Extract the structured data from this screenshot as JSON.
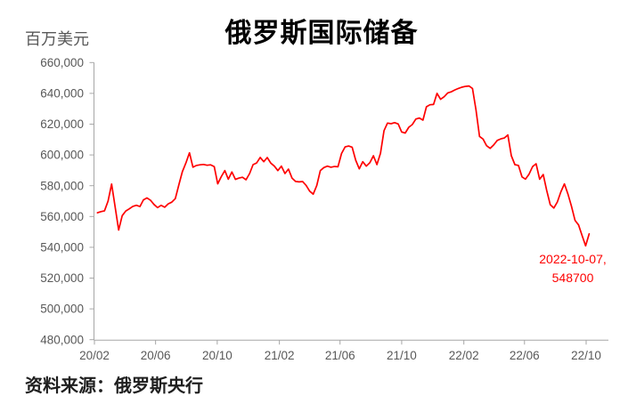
{
  "chart": {
    "title": "俄罗斯国际储备",
    "unit_label": "百万美元",
    "source": "资料来源：俄罗斯央行",
    "annotation": {
      "line1": "2022-10-07,",
      "line2": "548700"
    },
    "colors": {
      "line": "#fe0000",
      "annotation": "#fe0000",
      "axis": "#a6a6a6",
      "tick_label": "#595959",
      "title": "#000000",
      "source": "#1f1f1f"
    }
  },
  "chart_data": {
    "type": "line",
    "title": "俄罗斯国际储备",
    "ylabel": "百万美元",
    "xlabel": "",
    "grid": false,
    "legend": "none",
    "ylim": [
      480000,
      660000
    ],
    "ytick_step": 20000,
    "ytick_labels": [
      "660,000",
      "640,000",
      "620,000",
      "600,000",
      "580,000",
      "560,000",
      "540,000",
      "520,000",
      "500,000",
      "480,000"
    ],
    "xticks": [
      {
        "date": "2020-02-01",
        "label": "20/02"
      },
      {
        "date": "2020-06-01",
        "label": "20/06"
      },
      {
        "date": "2020-10-01",
        "label": "20/10"
      },
      {
        "date": "2021-02-01",
        "label": "21/02"
      },
      {
        "date": "2021-06-01",
        "label": "21/06"
      },
      {
        "date": "2021-10-01",
        "label": "21/10"
      },
      {
        "date": "2022-02-01",
        "label": "22/02"
      },
      {
        "date": "2022-06-01",
        "label": "22/06"
      },
      {
        "date": "2022-10-01",
        "label": "22/10"
      }
    ],
    "annotation": {
      "date": "2022-10-07",
      "value": 548700,
      "text_line1": "2022-10-07,",
      "text_line2": "548700"
    },
    "series": [
      {
        "name": "俄罗斯国际储备",
        "color": "#fe0000",
        "points": [
          [
            "2020-02-07",
            562400
          ],
          [
            "2020-02-14",
            563200
          ],
          [
            "2020-02-21",
            563700
          ],
          [
            "2020-02-28",
            570000
          ],
          [
            "2020-03-06",
            581100
          ],
          [
            "2020-03-13",
            566000
          ],
          [
            "2020-03-20",
            551200
          ],
          [
            "2020-03-27",
            560600
          ],
          [
            "2020-04-03",
            563600
          ],
          [
            "2020-04-10",
            565000
          ],
          [
            "2020-04-17",
            566600
          ],
          [
            "2020-04-24",
            567300
          ],
          [
            "2020-05-01",
            566500
          ],
          [
            "2020-05-08",
            570800
          ],
          [
            "2020-05-15",
            572100
          ],
          [
            "2020-05-22",
            570500
          ],
          [
            "2020-05-29",
            567800
          ],
          [
            "2020-06-05",
            565800
          ],
          [
            "2020-06-12",
            567300
          ],
          [
            "2020-06-19",
            566000
          ],
          [
            "2020-06-26",
            568200
          ],
          [
            "2020-07-03",
            569300
          ],
          [
            "2020-07-10",
            571600
          ],
          [
            "2020-07-17",
            580400
          ],
          [
            "2020-07-24",
            589100
          ],
          [
            "2020-07-31",
            594800
          ],
          [
            "2020-08-07",
            601400
          ],
          [
            "2020-08-14",
            592000
          ],
          [
            "2020-08-21",
            593200
          ],
          [
            "2020-08-28",
            593600
          ],
          [
            "2020-09-04",
            593800
          ],
          [
            "2020-09-11",
            593300
          ],
          [
            "2020-09-18",
            593600
          ],
          [
            "2020-09-25",
            592400
          ],
          [
            "2020-10-02",
            581200
          ],
          [
            "2020-10-09",
            585900
          ],
          [
            "2020-10-16",
            589800
          ],
          [
            "2020-10-23",
            584200
          ],
          [
            "2020-10-30",
            588900
          ],
          [
            "2020-11-06",
            584100
          ],
          [
            "2020-11-13",
            585000
          ],
          [
            "2020-11-20",
            585500
          ],
          [
            "2020-11-27",
            583900
          ],
          [
            "2020-12-04",
            587900
          ],
          [
            "2020-12-11",
            593700
          ],
          [
            "2020-12-18",
            594800
          ],
          [
            "2020-12-25",
            598400
          ],
          [
            "2021-01-01",
            595600
          ],
          [
            "2021-01-08",
            598300
          ],
          [
            "2021-01-15",
            594700
          ],
          [
            "2021-01-22",
            592700
          ],
          [
            "2021-01-29",
            589800
          ],
          [
            "2021-02-05",
            592700
          ],
          [
            "2021-02-12",
            587900
          ],
          [
            "2021-02-19",
            590800
          ],
          [
            "2021-02-26",
            585000
          ],
          [
            "2021-03-05",
            582800
          ],
          [
            "2021-03-12",
            582500
          ],
          [
            "2021-03-19",
            582700
          ],
          [
            "2021-03-26",
            580200
          ],
          [
            "2021-04-02",
            576400
          ],
          [
            "2021-04-09",
            574500
          ],
          [
            "2021-04-16",
            580200
          ],
          [
            "2021-04-23",
            589800
          ],
          [
            "2021-04-30",
            591800
          ],
          [
            "2021-05-07",
            592700
          ],
          [
            "2021-05-14",
            592000
          ],
          [
            "2021-05-21",
            592500
          ],
          [
            "2021-05-28",
            592300
          ],
          [
            "2021-06-04",
            600900
          ],
          [
            "2021-06-11",
            605200
          ],
          [
            "2021-06-18",
            605800
          ],
          [
            "2021-06-25",
            605000
          ],
          [
            "2021-07-02",
            596600
          ],
          [
            "2021-07-09",
            591000
          ],
          [
            "2021-07-16",
            595600
          ],
          [
            "2021-07-23",
            592700
          ],
          [
            "2021-07-30",
            595000
          ],
          [
            "2021-08-06",
            599500
          ],
          [
            "2021-08-13",
            593700
          ],
          [
            "2021-08-20",
            601000
          ],
          [
            "2021-08-27",
            615800
          ],
          [
            "2021-09-03",
            620700
          ],
          [
            "2021-09-10",
            620300
          ],
          [
            "2021-09-17",
            621000
          ],
          [
            "2021-09-24",
            620100
          ],
          [
            "2021-10-01",
            614900
          ],
          [
            "2021-10-08",
            614200
          ],
          [
            "2021-10-15",
            618000
          ],
          [
            "2021-10-22",
            619700
          ],
          [
            "2021-10-29",
            623300
          ],
          [
            "2021-11-05",
            624000
          ],
          [
            "2021-11-12",
            622600
          ],
          [
            "2021-11-19",
            631300
          ],
          [
            "2021-11-26",
            632600
          ],
          [
            "2021-12-03",
            632800
          ],
          [
            "2021-12-10",
            640000
          ],
          [
            "2021-12-17",
            636100
          ],
          [
            "2021-12-24",
            637800
          ],
          [
            "2021-12-31",
            640300
          ],
          [
            "2022-01-07",
            641000
          ],
          [
            "2022-01-14",
            642200
          ],
          [
            "2022-01-21",
            643200
          ],
          [
            "2022-01-28",
            644000
          ],
          [
            "2022-02-04",
            644500
          ],
          [
            "2022-02-11",
            644800
          ],
          [
            "2022-02-18",
            643200
          ],
          [
            "2022-02-25",
            629400
          ],
          [
            "2022-03-04",
            612000
          ],
          [
            "2022-03-11",
            610300
          ],
          [
            "2022-03-18",
            606000
          ],
          [
            "2022-03-25",
            604300
          ],
          [
            "2022-04-01",
            606500
          ],
          [
            "2022-04-08",
            609400
          ],
          [
            "2022-04-15",
            610400
          ],
          [
            "2022-04-22",
            611000
          ],
          [
            "2022-04-29",
            613000
          ],
          [
            "2022-05-06",
            599500
          ],
          [
            "2022-05-13",
            593700
          ],
          [
            "2022-05-20",
            593200
          ],
          [
            "2022-05-27",
            585700
          ],
          [
            "2022-06-03",
            584300
          ],
          [
            "2022-06-10",
            587500
          ],
          [
            "2022-06-17",
            592400
          ],
          [
            "2022-06-24",
            594300
          ],
          [
            "2022-07-01",
            584200
          ],
          [
            "2022-07-08",
            587300
          ],
          [
            "2022-07-15",
            577000
          ],
          [
            "2022-07-22",
            567700
          ],
          [
            "2022-07-29",
            565500
          ],
          [
            "2022-08-05",
            569500
          ],
          [
            "2022-08-12",
            576000
          ],
          [
            "2022-08-19",
            581200
          ],
          [
            "2022-08-26",
            574500
          ],
          [
            "2022-09-02",
            566700
          ],
          [
            "2022-09-09",
            557500
          ],
          [
            "2022-09-16",
            554500
          ],
          [
            "2022-09-23",
            547500
          ],
          [
            "2022-09-30",
            541000
          ],
          [
            "2022-10-07",
            548700
          ]
        ]
      }
    ]
  }
}
